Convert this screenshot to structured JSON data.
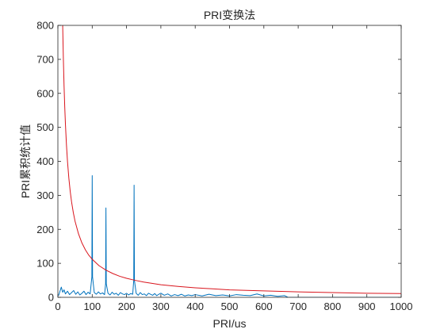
{
  "chart_data": {
    "type": "line",
    "title": "PRI变换法",
    "xlabel": "PRI/us",
    "ylabel": "PRI累积统计值",
    "xlim": [
      0,
      1000
    ],
    "ylim": [
      0,
      800
    ],
    "grid": false,
    "legend": "none",
    "x_ticks": [
      "0",
      "100",
      "200",
      "300",
      "400",
      "500",
      "600",
      "700",
      "800",
      "900",
      "1000"
    ],
    "y_ticks": [
      "0",
      "100",
      "200",
      "300",
      "400",
      "500",
      "600",
      "700",
      "800"
    ],
    "series": [
      {
        "color": "#0072BD",
        "x": [
          2,
          10,
          14,
          18,
          22,
          28,
          34,
          40,
          46,
          52,
          58,
          64,
          70,
          76,
          82,
          88,
          94,
          99,
          100,
          101,
          106,
          112,
          118,
          124,
          130,
          136,
          139,
          140,
          141,
          146,
          152,
          158,
          164,
          170,
          176,
          182,
          188,
          194,
          200,
          206,
          212,
          218,
          221,
          222,
          223,
          228,
          234,
          240,
          246,
          252,
          258,
          264,
          270,
          276,
          282,
          288,
          294,
          300,
          310,
          320,
          330,
          340,
          350,
          360,
          370,
          380,
          390,
          400,
          420,
          440,
          460,
          480,
          500,
          520,
          540,
          560,
          580,
          600,
          620,
          640,
          660,
          670,
          700,
          800,
          900,
          1000
        ],
        "y": [
          5,
          30,
          15,
          22,
          10,
          18,
          8,
          14,
          20,
          9,
          16,
          7,
          12,
          18,
          8,
          15,
          10,
          60,
          358,
          60,
          14,
          9,
          16,
          10,
          13,
          8,
          40,
          263,
          40,
          12,
          7,
          15,
          9,
          12,
          6,
          14,
          10,
          8,
          12,
          7,
          11,
          9,
          50,
          330,
          50,
          12,
          6,
          14,
          8,
          10,
          5,
          12,
          9,
          6,
          11,
          5,
          9,
          12,
          6,
          10,
          4,
          8,
          5,
          9,
          4,
          7,
          5,
          8,
          4,
          9,
          5,
          7,
          4,
          8,
          6,
          5,
          10,
          4,
          6,
          3,
          5,
          0,
          0,
          0,
          0,
          0
        ]
      },
      {
        "color": "#D9151D",
        "x": [
          14,
          16,
          18,
          20,
          22,
          25,
          28,
          32,
          36,
          40,
          45,
          50,
          60,
          70,
          80,
          90,
          100,
          120,
          140,
          160,
          180,
          200,
          225,
          250,
          300,
          350,
          400,
          450,
          500,
          600,
          700,
          800,
          900,
          1000
        ],
        "y": [
          800,
          700,
          622,
          560,
          509,
          448,
          400,
          350,
          311,
          280,
          249,
          224,
          187,
          160,
          140,
          124,
          112,
          93,
          80,
          70,
          62,
          56,
          50,
          45,
          37,
          32,
          28,
          25,
          22,
          19,
          16,
          14,
          12,
          11
        ]
      }
    ]
  }
}
